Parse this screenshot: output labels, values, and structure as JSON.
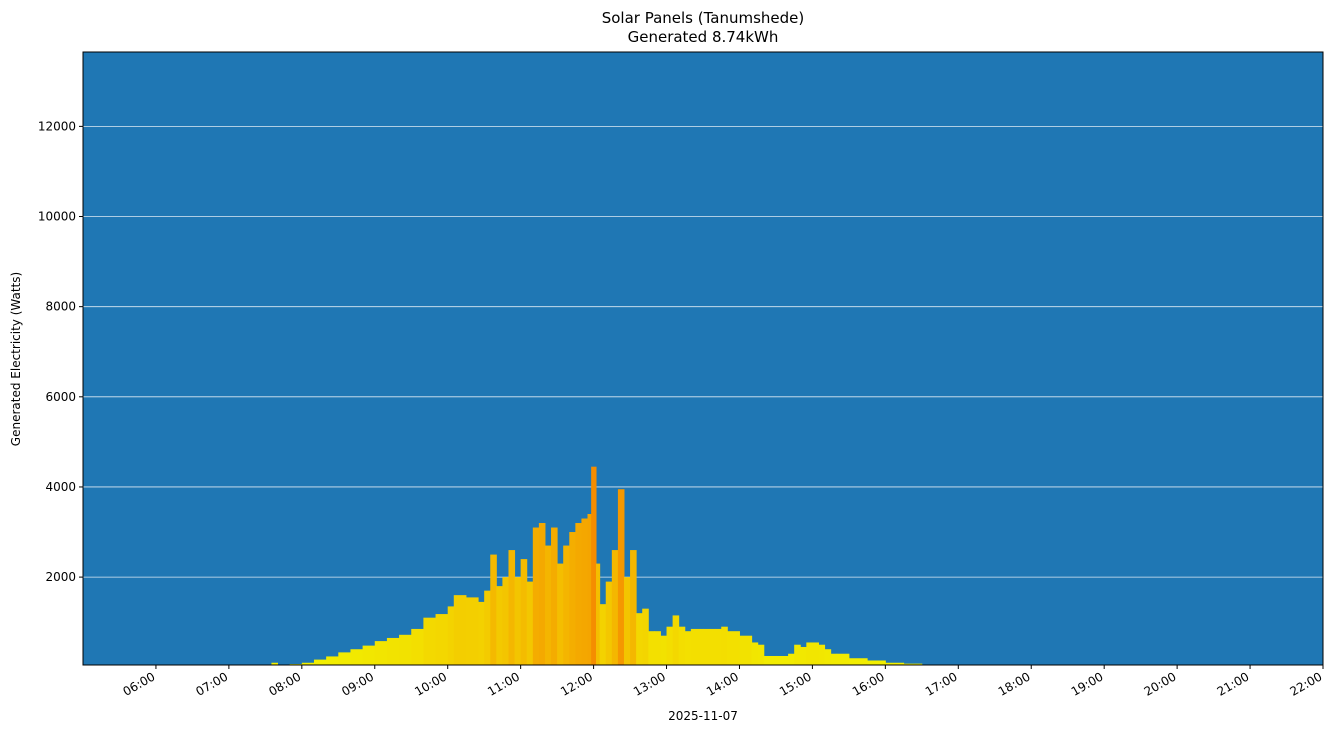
{
  "chart_data": {
    "type": "bar",
    "title": "Solar Panels (Tanumshede)",
    "subtitle": "Generated 8.74kWh",
    "xlabel": "2025-11-07",
    "ylabel": "Generated Electricity (Watts)",
    "ylim": [
      50,
      13650
    ],
    "xlim": [
      "05:00",
      "22:00"
    ],
    "grid": {
      "y": true,
      "x": false,
      "color": "#ffffff"
    },
    "background_color": "#1f77b4",
    "bar_color_low": "#f2f200",
    "bar_color_high": "#f58c00",
    "yticks": [
      2000,
      4000,
      6000,
      8000,
      10000,
      12000
    ],
    "xticks": [
      "06:00",
      "07:00",
      "08:00",
      "09:00",
      "10:00",
      "11:00",
      "12:00",
      "13:00",
      "14:00",
      "15:00",
      "16:00",
      "17:00",
      "18:00",
      "19:00",
      "20:00",
      "21:00",
      "22:00"
    ],
    "series": [
      {
        "name": "Generated Electricity",
        "x": [
          "07:35",
          "07:40",
          "07:50",
          "08:00",
          "08:10",
          "08:20",
          "08:30",
          "08:40",
          "08:50",
          "09:00",
          "09:10",
          "09:20",
          "09:30",
          "09:40",
          "09:50",
          "10:00",
          "10:05",
          "10:15",
          "10:25",
          "10:30",
          "10:35",
          "10:40",
          "10:45",
          "10:50",
          "10:55",
          "11:00",
          "11:05",
          "11:10",
          "11:15",
          "11:20",
          "11:25",
          "11:30",
          "11:35",
          "11:40",
          "11:45",
          "11:50",
          "11:55",
          "11:58",
          "12:02",
          "12:05",
          "12:10",
          "12:15",
          "12:20",
          "12:25",
          "12:30",
          "12:35",
          "12:40",
          "12:45",
          "12:50",
          "12:55",
          "13:00",
          "13:05",
          "13:10",
          "13:15",
          "13:20",
          "13:30",
          "13:40",
          "13:45",
          "13:50",
          "14:00",
          "14:10",
          "14:15",
          "14:20",
          "14:30",
          "14:40",
          "14:45",
          "14:50",
          "14:55",
          "15:05",
          "15:10",
          "15:15",
          "15:20",
          "15:30",
          "15:45",
          "16:00",
          "16:15",
          "16:30",
          "16:45"
        ],
        "values": [
          100,
          50,
          70,
          100,
          170,
          240,
          330,
          400,
          480,
          580,
          650,
          720,
          850,
          1100,
          1180,
          1350,
          1600,
          1550,
          1450,
          1700,
          2500,
          1800,
          2000,
          2600,
          2000,
          2400,
          1900,
          3100,
          3200,
          2700,
          3100,
          2300,
          2700,
          3000,
          3200,
          3300,
          3400,
          4450,
          2300,
          1400,
          1900,
          2600,
          3950,
          2000,
          2600,
          1200,
          1300,
          800,
          800,
          700,
          900,
          1150,
          900,
          800,
          850,
          850,
          850,
          900,
          800,
          700,
          550,
          500,
          250,
          250,
          300,
          500,
          450,
          550,
          500,
          400,
          300,
          300,
          200,
          150,
          100,
          80,
          50,
          20
        ]
      }
    ]
  }
}
